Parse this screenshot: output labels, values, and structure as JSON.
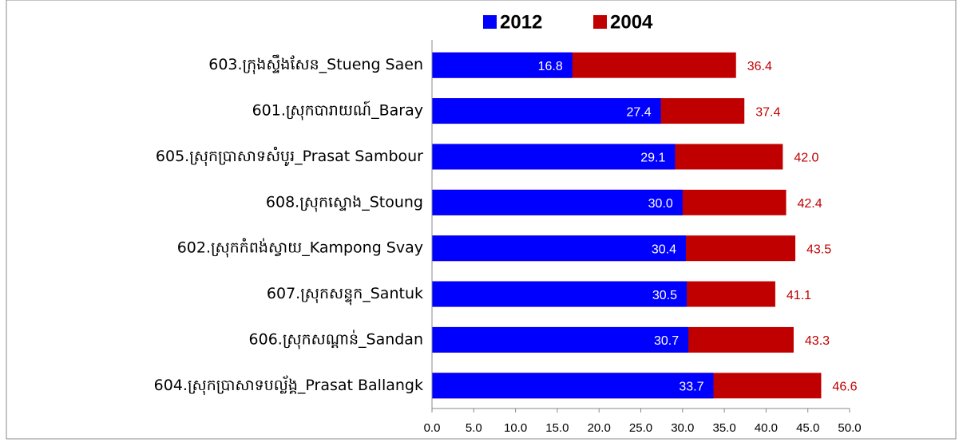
{
  "chart_data": {
    "type": "bar",
    "orientation": "horizontal",
    "overlap": true,
    "categories": [
      "603.ក្រុងស្ទឹងសែន_Stueng Saen",
      "601.ស្រុកបារាយណ៍_Baray",
      "605.ស្រុកប្រាសាទសំបូរ_Prasat Sambour",
      "608.ស្រុកស្ទោង_Stoung",
      "602.ស្រុកកំពង់ស្វាយ_Kampong Svay",
      "607.ស្រុកសន្ទុក_Santuk",
      "606.ស្រុកសណ្ដាន់_Sandan",
      "604.ស្រុកប្រាសាទបល្ល័ង្គ_Prasat Ballangk"
    ],
    "series": [
      {
        "name": "2012",
        "color": "#0000ff",
        "label_color": "#ffffff",
        "values": [
          16.8,
          27.4,
          29.1,
          30.0,
          30.4,
          30.5,
          30.7,
          33.7
        ],
        "value_labels": [
          "16.8",
          "27.4",
          "29.1",
          "30.0",
          "30.4",
          "30.5",
          "30.7",
          "33.7"
        ]
      },
      {
        "name": "2004",
        "color": "#c00000",
        "label_color": "#c00000",
        "values": [
          36.4,
          37.4,
          42.0,
          42.4,
          43.5,
          41.1,
          43.3,
          46.6
        ],
        "value_labels": [
          "36.4",
          "37.4",
          "42.0",
          "42.4",
          "43.5",
          "41.1",
          "43.3",
          "46.6"
        ]
      }
    ],
    "xlim": [
      0,
      50
    ],
    "xticks": [
      {
        "value": 0,
        "label": "0.0"
      },
      {
        "value": 5,
        "label": "5.0"
      },
      {
        "value": 10,
        "label": "10.0"
      },
      {
        "value": 15,
        "label": "15.0"
      },
      {
        "value": 20,
        "label": "20.0"
      },
      {
        "value": 25,
        "label": "25.0"
      },
      {
        "value": 30,
        "label": "30.0"
      },
      {
        "value": 35,
        "label": "35.0"
      },
      {
        "value": 40,
        "label": "40.0"
      },
      {
        "value": 45,
        "label": "45.0"
      },
      {
        "value": 50,
        "label": "50.0"
      }
    ],
    "grid": false,
    "legend": "top"
  }
}
